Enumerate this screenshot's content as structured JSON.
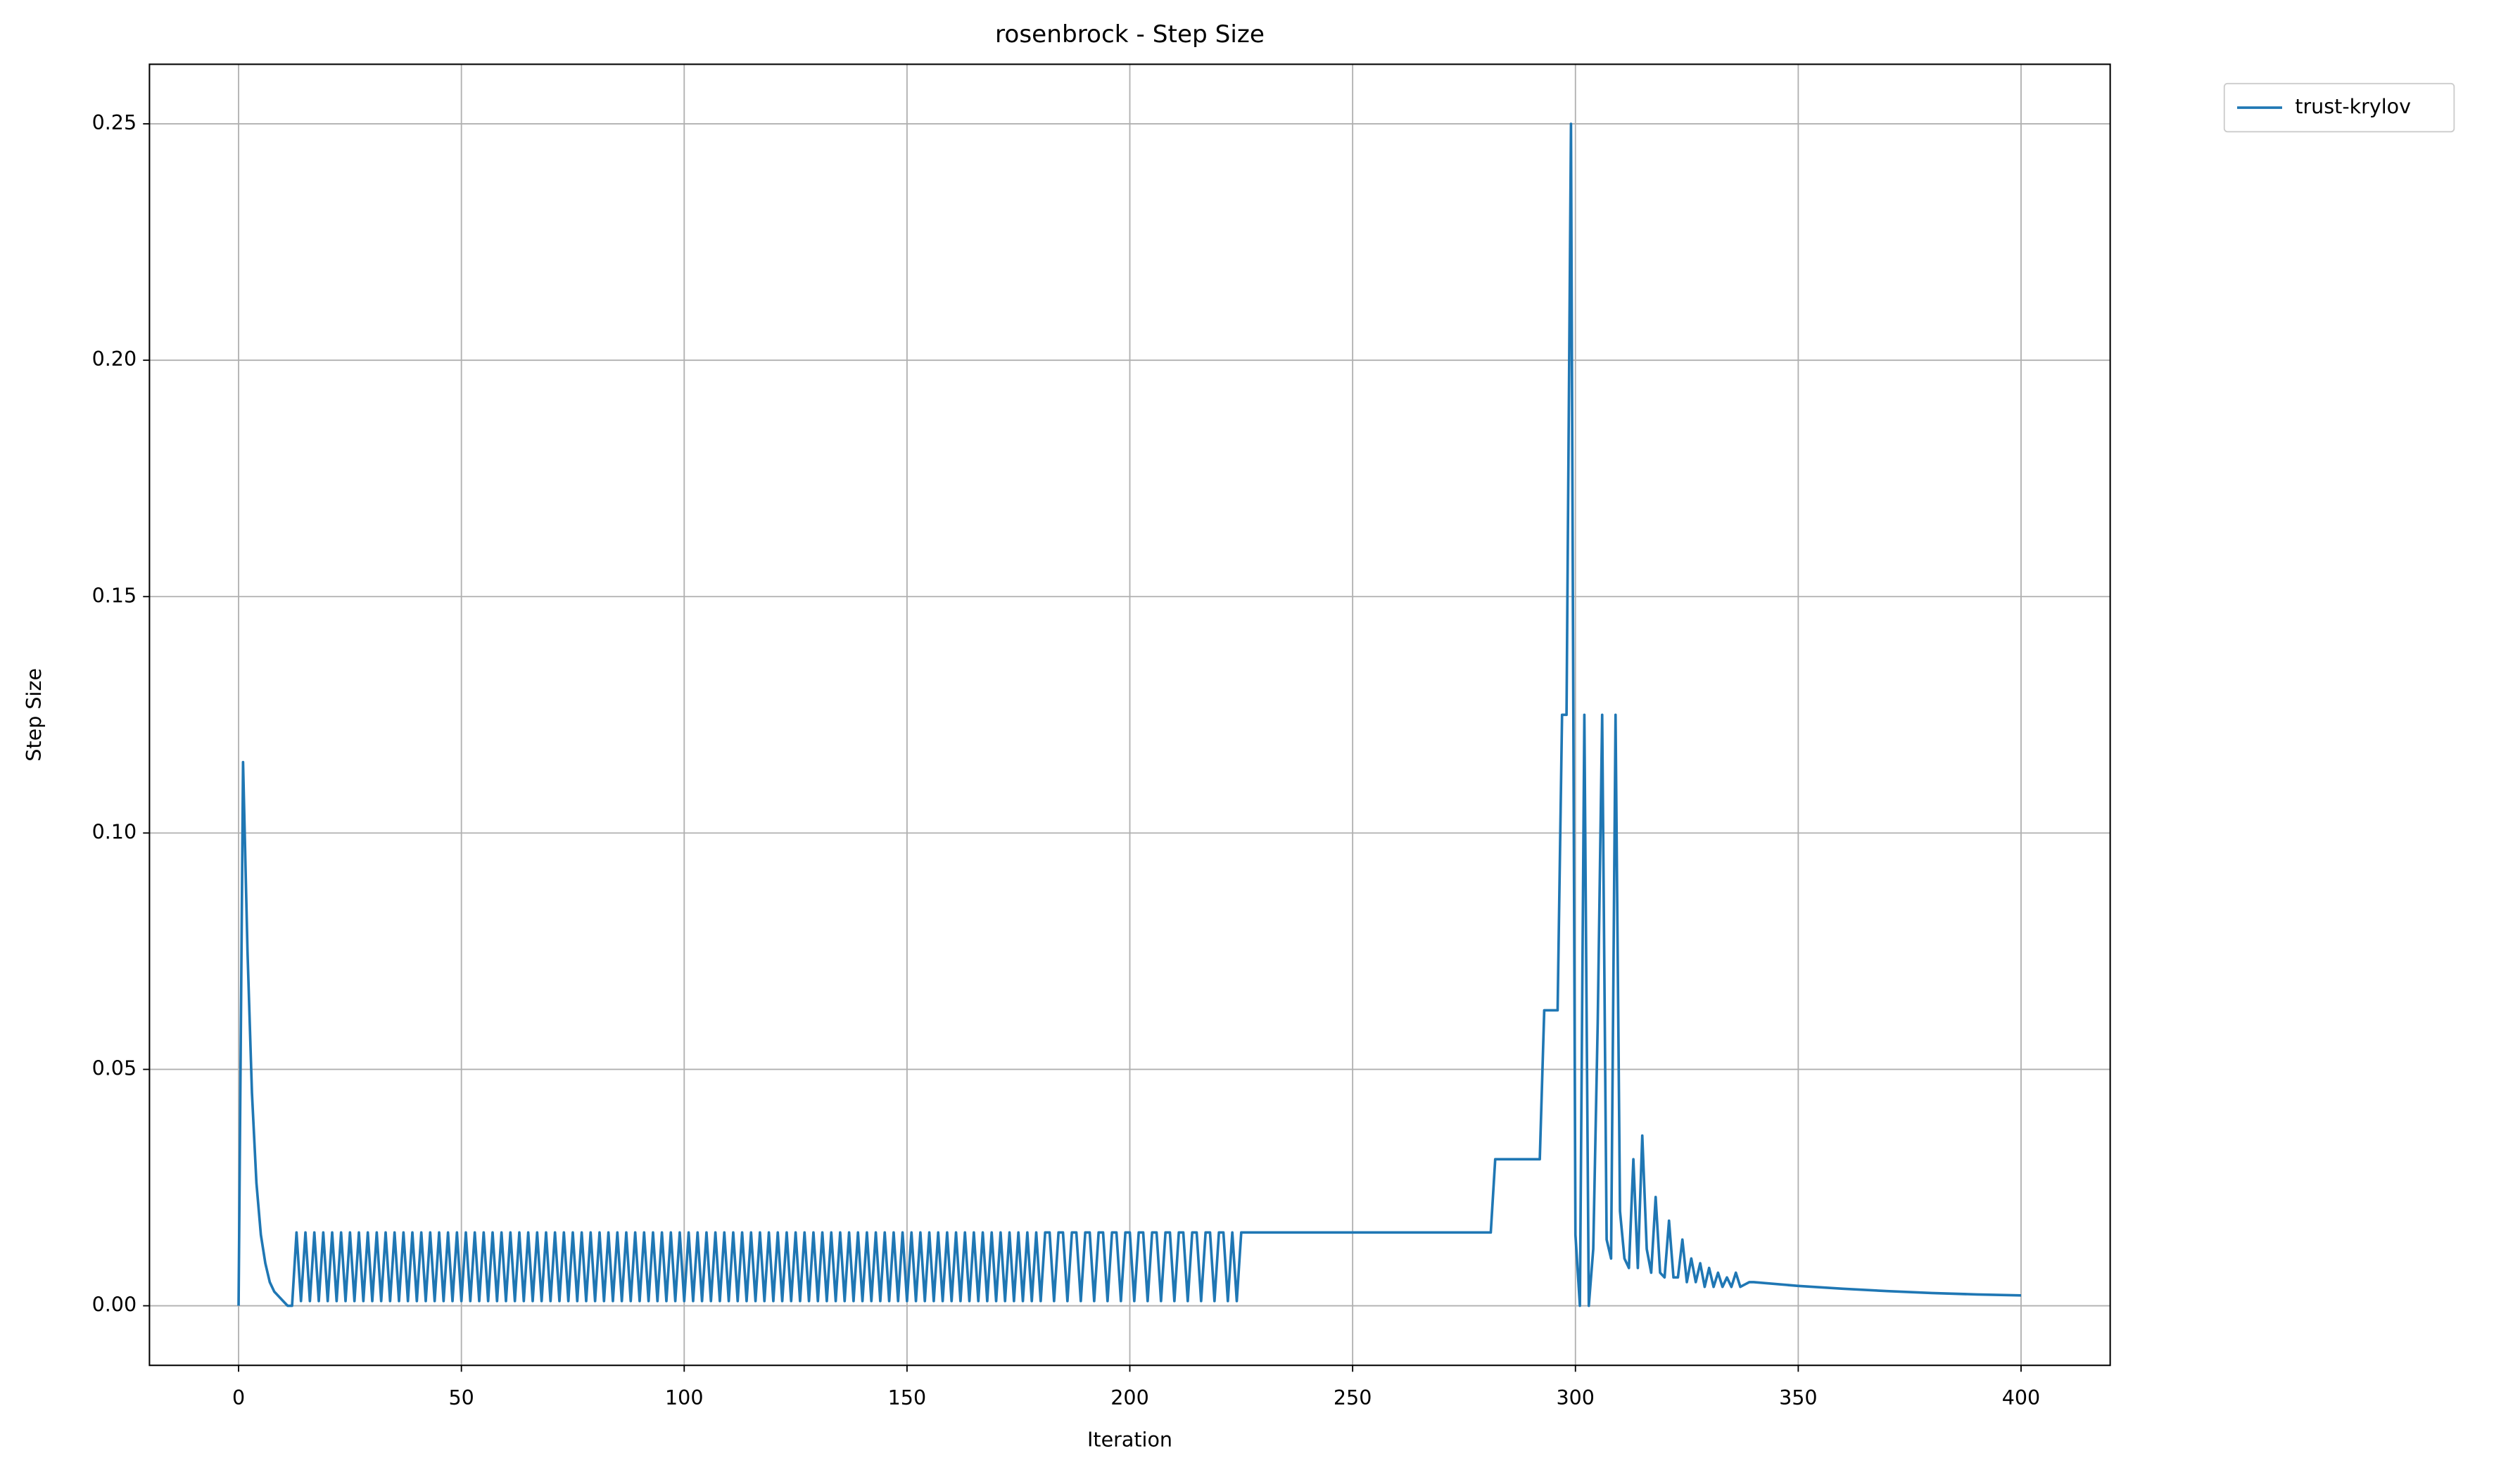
{
  "chart_data": {
    "type": "line",
    "title": "rosenbrock - Step Size",
    "x_label": "Iteration",
    "y_label": "Step Size",
    "grid": true,
    "legend": "outside upper right",
    "xlim": [
      -20,
      420
    ],
    "ylim": [
      -0.0126,
      0.2626
    ],
    "xticks": [
      0,
      50,
      100,
      150,
      200,
      250,
      300,
      350,
      400
    ],
    "yticks": [
      {
        "value": 0,
        "label": "0.00"
      },
      {
        "value": 0.05,
        "label": "0.05"
      },
      {
        "value": 0.1,
        "label": "0.10"
      },
      {
        "value": 0.15,
        "label": "0.15"
      },
      {
        "value": 0.2,
        "label": "0.20"
      },
      {
        "value": 0.25,
        "label": "0.25"
      }
    ],
    "x": [
      0,
      1,
      2,
      3,
      4,
      5,
      6,
      7,
      8,
      9,
      10,
      11,
      12,
      13,
      14,
      15,
      16,
      17,
      18,
      19,
      20,
      21,
      22,
      23,
      24,
      25,
      26,
      27,
      28,
      29,
      30,
      31,
      32,
      33,
      34,
      35,
      36,
      37,
      38,
      39,
      40,
      41,
      42,
      43,
      44,
      45,
      46,
      47,
      48,
      49,
      50,
      51,
      52,
      53,
      54,
      55,
      56,
      57,
      58,
      59,
      60,
      61,
      62,
      63,
      64,
      65,
      66,
      67,
      68,
      69,
      70,
      71,
      72,
      73,
      74,
      75,
      76,
      77,
      78,
      79,
      80,
      81,
      82,
      83,
      84,
      85,
      86,
      87,
      88,
      89,
      90,
      91,
      92,
      93,
      94,
      95,
      96,
      97,
      98,
      99,
      100,
      101,
      102,
      103,
      104,
      105,
      106,
      107,
      108,
      109,
      110,
      111,
      112,
      113,
      114,
      115,
      116,
      117,
      118,
      119,
      120,
      121,
      122,
      123,
      124,
      125,
      126,
      127,
      128,
      129,
      130,
      131,
      132,
      133,
      134,
      135,
      136,
      137,
      138,
      139,
      140,
      141,
      142,
      143,
      144,
      145,
      146,
      147,
      148,
      149,
      150,
      151,
      152,
      153,
      154,
      155,
      156,
      157,
      158,
      159,
      160,
      161,
      162,
      163,
      164,
      165,
      166,
      167,
      168,
      169,
      170,
      171,
      172,
      173,
      174,
      175,
      176,
      177,
      178,
      179,
      180,
      181,
      182,
      183,
      184,
      185,
      186,
      187,
      188,
      189,
      190,
      191,
      192,
      193,
      194,
      195,
      196,
      197,
      198,
      199,
      200,
      201,
      202,
      203,
      204,
      205,
      206,
      207,
      208,
      209,
      210,
      211,
      212,
      213,
      214,
      215,
      216,
      217,
      218,
      219,
      220,
      221,
      222,
      223,
      224,
      225,
      281,
      282,
      283,
      284,
      285,
      286,
      287,
      288,
      289,
      290,
      291,
      292,
      293,
      294,
      295,
      296,
      297,
      298,
      299,
      300,
      301,
      302,
      303,
      304,
      305,
      306,
      307,
      308,
      309,
      310,
      311,
      312,
      313,
      314,
      315,
      316,
      317,
      318,
      319,
      320,
      321,
      322,
      323,
      324,
      325,
      326,
      327,
      328,
      329,
      330,
      331,
      332,
      333,
      334,
      335,
      336,
      337,
      338,
      339,
      340,
      350,
      360,
      370,
      380,
      390,
      400
    ],
    "series": [
      {
        "name": "trust-krylov",
        "color": "#1f77b4",
        "values": [
          0,
          0.115,
          0.075,
          0.045,
          0.026,
          0.015,
          0.009,
          0.005,
          0.003,
          0.002,
          0.001,
          0,
          0,
          0.0155,
          0.001,
          0.0155,
          0.001,
          0.0155,
          0.001,
          0.0155,
          0.001,
          0.0155,
          0.001,
          0.0155,
          0.001,
          0.0155,
          0.001,
          0.0155,
          0.001,
          0.0155,
          0.001,
          0.0155,
          0.001,
          0.0155,
          0.001,
          0.0155,
          0.001,
          0.0155,
          0.001,
          0.0155,
          0.001,
          0.0155,
          0.001,
          0.0155,
          0.001,
          0.0155,
          0.001,
          0.0155,
          0.001,
          0.0155,
          0.001,
          0.0155,
          0.001,
          0.0155,
          0.001,
          0.0155,
          0.001,
          0.0155,
          0.001,
          0.0155,
          0.001,
          0.0155,
          0.001,
          0.0155,
          0.001,
          0.0155,
          0.001,
          0.0155,
          0.001,
          0.0155,
          0.001,
          0.0155,
          0.001,
          0.0155,
          0.001,
          0.0155,
          0.001,
          0.0155,
          0.001,
          0.0155,
          0.001,
          0.0155,
          0.001,
          0.0155,
          0.001,
          0.0155,
          0.001,
          0.0155,
          0.001,
          0.0155,
          0.001,
          0.0155,
          0.001,
          0.0155,
          0.001,
          0.0155,
          0.001,
          0.0155,
          0.001,
          0.0155,
          0.001,
          0.0155,
          0.001,
          0.0155,
          0.001,
          0.0155,
          0.001,
          0.0155,
          0.001,
          0.0155,
          0.001,
          0.0155,
          0.001,
          0.0155,
          0.001,
          0.0155,
          0.001,
          0.0155,
          0.001,
          0.0155,
          0.001,
          0.0155,
          0.001,
          0.0155,
          0.001,
          0.0155,
          0.001,
          0.0155,
          0.001,
          0.0155,
          0.001,
          0.0155,
          0.001,
          0.0155,
          0.001,
          0.0155,
          0.001,
          0.0155,
          0.001,
          0.0155,
          0.001,
          0.0155,
          0.001,
          0.0155,
          0.001,
          0.0155,
          0.001,
          0.0155,
          0.001,
          0.0155,
          0.001,
          0.0155,
          0.001,
          0.0155,
          0.001,
          0.0155,
          0.001,
          0.0155,
          0.001,
          0.0155,
          0.001,
          0.0155,
          0.001,
          0.0155,
          0.001,
          0.0155,
          0.001,
          0.0155,
          0.001,
          0.0155,
          0.001,
          0.0155,
          0.001,
          0.0155,
          0.001,
          0.0155,
          0.001,
          0.0155,
          0.001,
          0.0155,
          0.001,
          0.0155,
          0.0155,
          0.001,
          0.0155,
          0.0155,
          0.001,
          0.0155,
          0.0155,
          0.001,
          0.0155,
          0.0155,
          0.001,
          0.0155,
          0.0155,
          0.001,
          0.0155,
          0.0155,
          0.001,
          0.0155,
          0.0155,
          0.001,
          0.0155,
          0.0155,
          0.001,
          0.0155,
          0.0155,
          0.001,
          0.0155,
          0.0155,
          0.001,
          0.0155,
          0.0155,
          0.001,
          0.0155,
          0.0155,
          0.001,
          0.0155,
          0.0155,
          0.001,
          0.0155,
          0.0155,
          0.001,
          0.0155,
          0.001,
          0.0155,
          0.0155,
          0.031,
          0.031,
          0.031,
          0.031,
          0.031,
          0.031,
          0.031,
          0.031,
          0.031,
          0.031,
          0.031,
          0.0625,
          0.0625,
          0.0625,
          0.0625,
          0.125,
          0.125,
          0.25,
          0.015,
          0,
          0.125,
          0,
          0.012,
          0.06,
          0.125,
          0.014,
          0.01,
          0.125,
          0.02,
          0.01,
          0.008,
          0.031,
          0.008,
          0.036,
          0.012,
          0.007,
          0.023,
          0.007,
          0.006,
          0.018,
          0.006,
          0.006,
          0.014,
          0.005,
          0.01,
          0.005,
          0.009,
          0.004,
          0.008,
          0.004,
          0.007,
          0.004,
          0.006,
          0.004,
          0.007,
          0.004,
          0.0045,
          0.005,
          0.005,
          0.0042,
          0.0036,
          0.0031,
          0.0027,
          0.0024,
          0.0022
        ]
      }
    ]
  }
}
